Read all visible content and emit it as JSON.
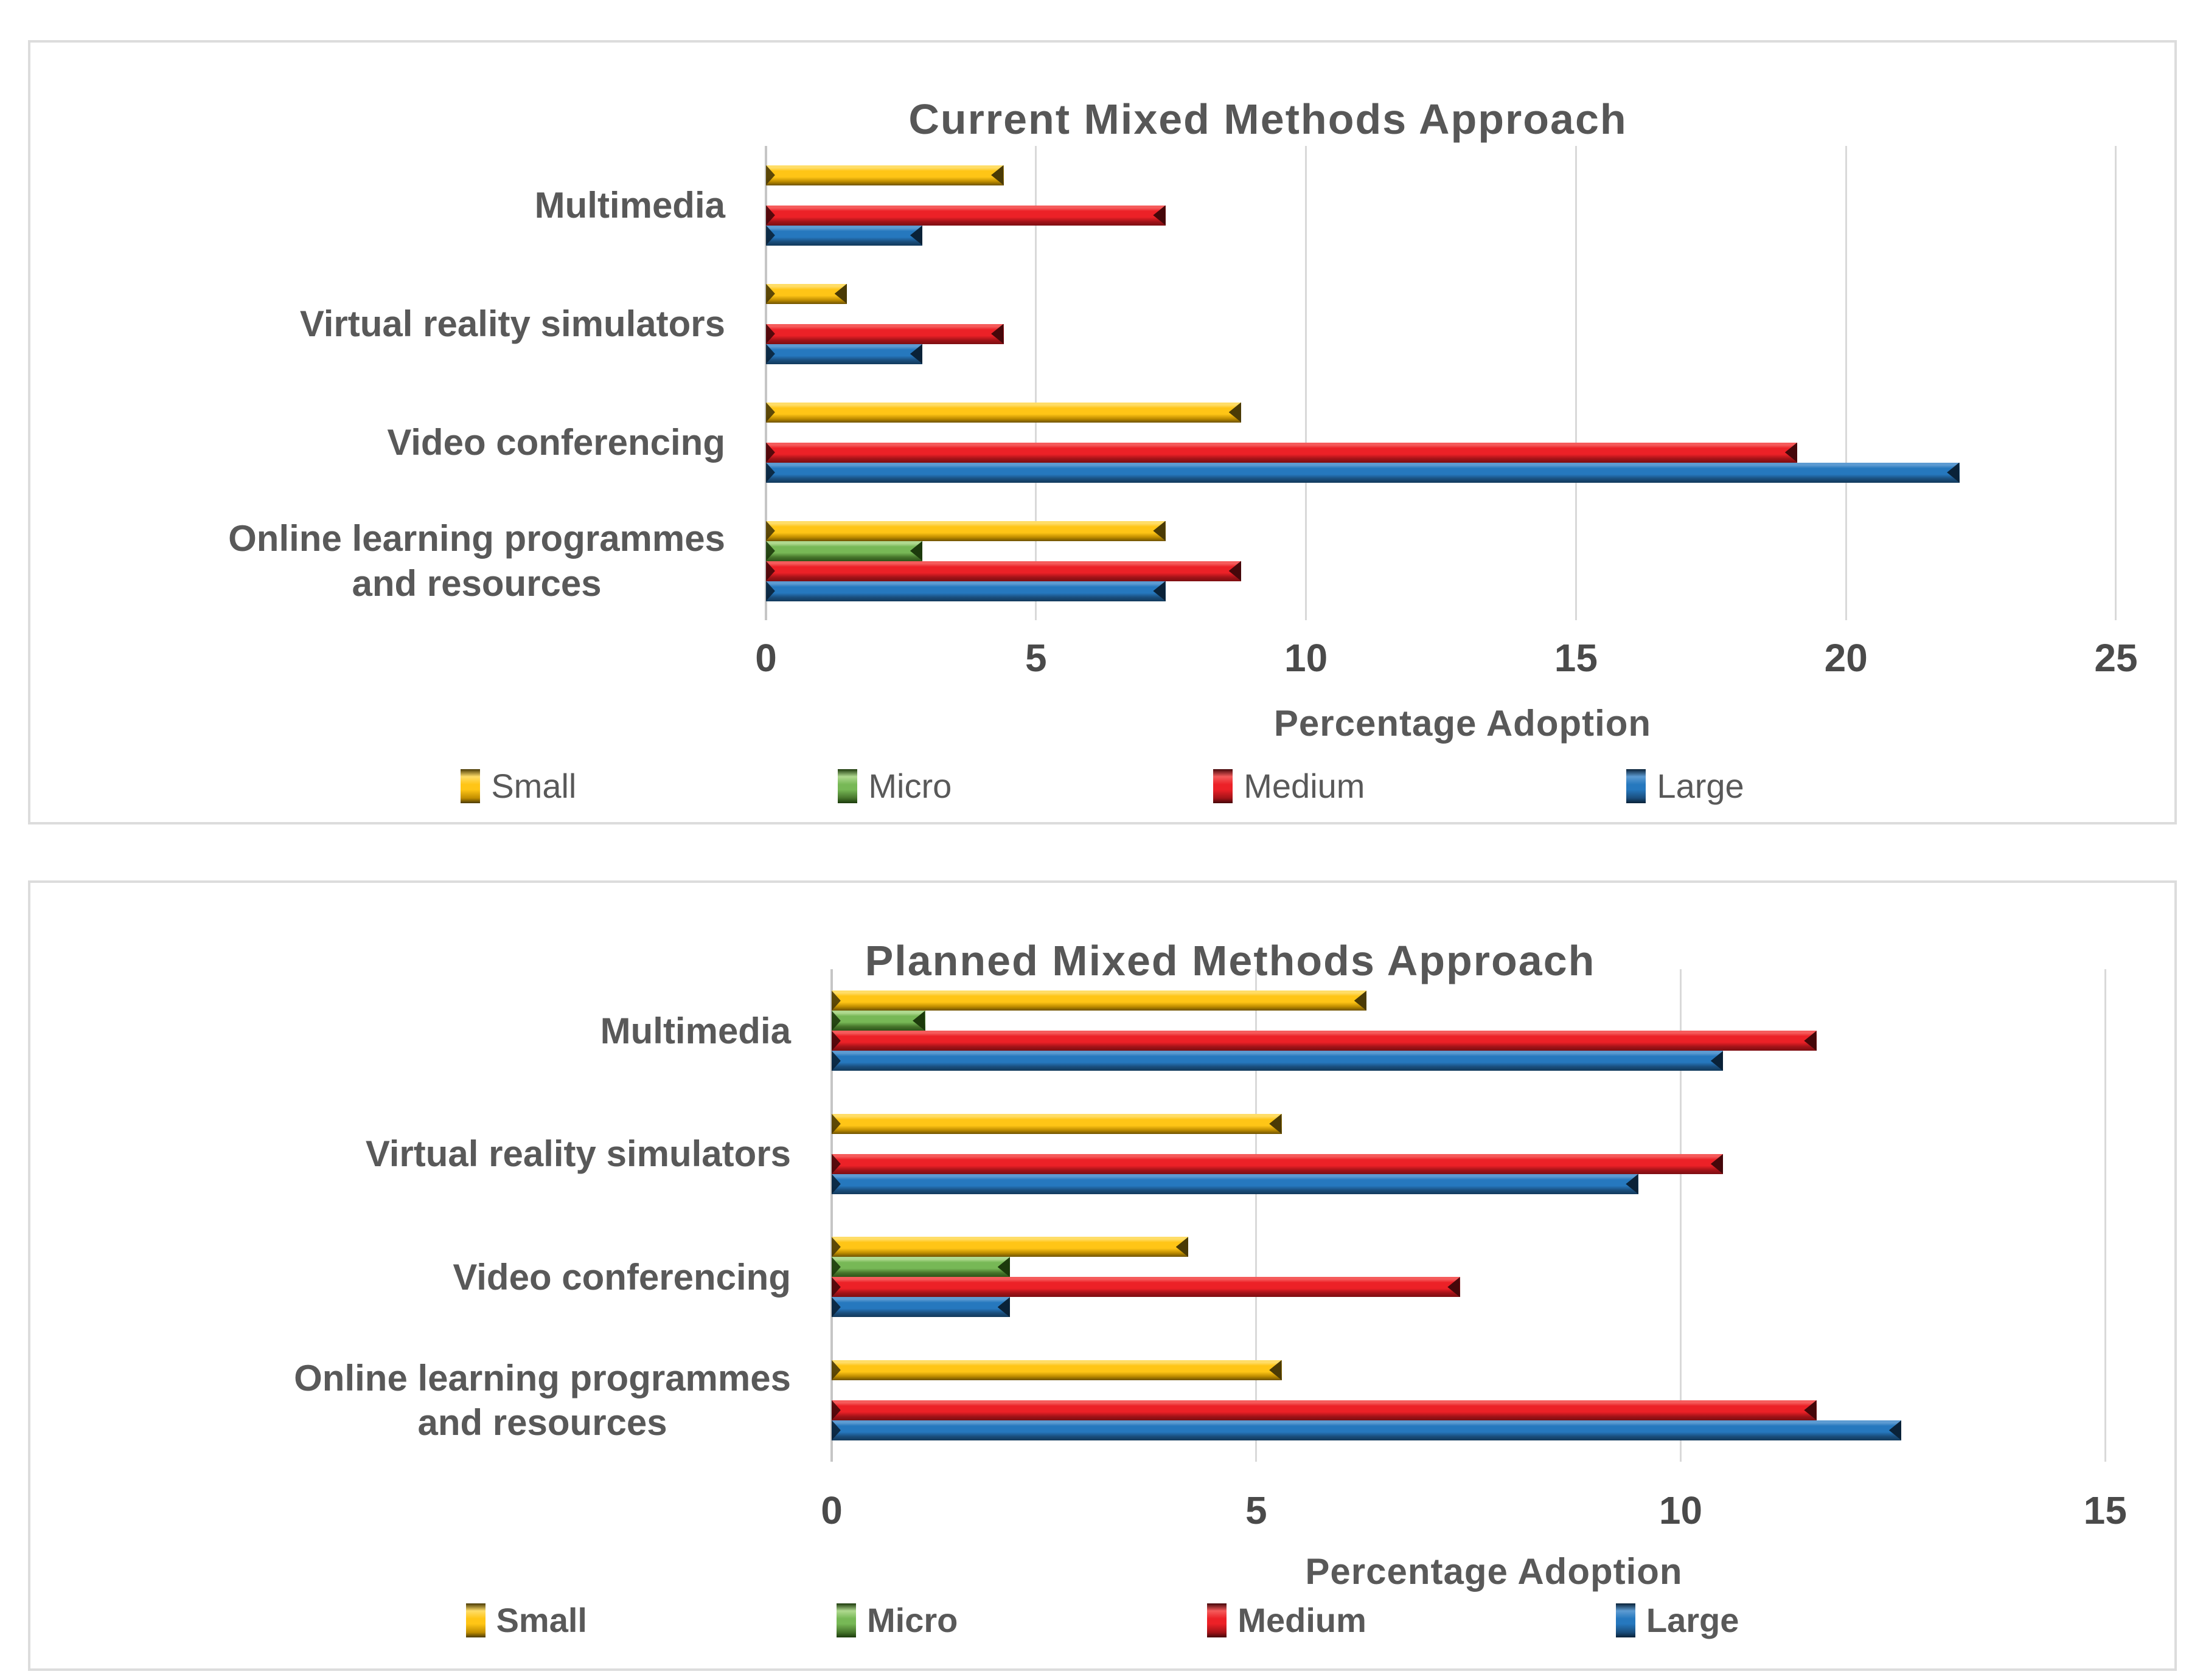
{
  "figure": {
    "background": "#ffffff",
    "panel_border_color": "#dcdcdc",
    "gridline_color": "#d9d9d9",
    "axis_line_color": "#c6c6c6",
    "title_color": "#575757",
    "label_color": "#595959",
    "tick_color": "#4a4a4a"
  },
  "series_colors": {
    "Small": {
      "light": "#ffdd67",
      "main": "#ffc516",
      "dark": "#c18e00",
      "darkest": "#6e5200",
      "cap": "#4a3a05"
    },
    "Micro": {
      "light": "#afd98f",
      "main": "#77b856",
      "dark": "#46752b",
      "darkest": "#2e5418",
      "cap": "#1c3a0c"
    },
    "Medium": {
      "light": "#f55b5b",
      "main": "#ec2127",
      "dark": "#a31318",
      "darkest": "#7c0e12",
      "cap": "#45070a"
    },
    "Large": {
      "light": "#5d9bd2",
      "main": "#2678be",
      "dark": "#1a4e7d",
      "darkest": "#12395c",
      "cap": "#0a2238"
    }
  },
  "chart_data": [
    {
      "type": "bar",
      "orientation": "horizontal",
      "title": "Current Mixed Methods Approach",
      "xlabel": "Percentage Adoption",
      "x_ticks": [
        0,
        5,
        10,
        15,
        20,
        25
      ],
      "xlim": [
        0,
        25.8
      ],
      "grid": true,
      "legend_position": "bottom",
      "legend": [
        "Small",
        "Micro",
        "Medium",
        "Large"
      ],
      "categories": [
        "Multimedia",
        "Virtual reality simulators",
        "Video conferencing",
        "Online learning programmes\nand resources"
      ],
      "series": [
        {
          "name": "Small",
          "values": [
            4.4,
            1.5,
            8.8,
            7.4
          ]
        },
        {
          "name": "Micro",
          "values": [
            0,
            0,
            0,
            2.9
          ]
        },
        {
          "name": "Medium",
          "values": [
            7.4,
            4.4,
            19.1,
            8.8
          ]
        },
        {
          "name": "Large",
          "values": [
            2.9,
            2.9,
            22.1,
            7.4
          ]
        }
      ]
    },
    {
      "type": "bar",
      "orientation": "horizontal",
      "title": "Planned Mixed Methods Approach",
      "xlabel": "Percentage Adoption",
      "x_ticks": [
        0,
        5,
        10,
        15
      ],
      "xlim": [
        0,
        15.6
      ],
      "grid": true,
      "legend_position": "bottom",
      "legend": [
        "Small",
        "Micro",
        "Medium",
        "Large"
      ],
      "categories": [
        "Multimedia",
        "Virtual reality simulators",
        "Video conferencing",
        "Online learning programmes\nand resources"
      ],
      "series": [
        {
          "name": "Small",
          "values": [
            6.3,
            5.3,
            4.2,
            5.3
          ]
        },
        {
          "name": "Micro",
          "values": [
            1.1,
            0,
            2.1,
            0
          ]
        },
        {
          "name": "Medium",
          "values": [
            11.6,
            10.5,
            7.4,
            11.6
          ]
        },
        {
          "name": "Large",
          "values": [
            10.5,
            9.5,
            2.1,
            12.6
          ]
        }
      ]
    }
  ]
}
